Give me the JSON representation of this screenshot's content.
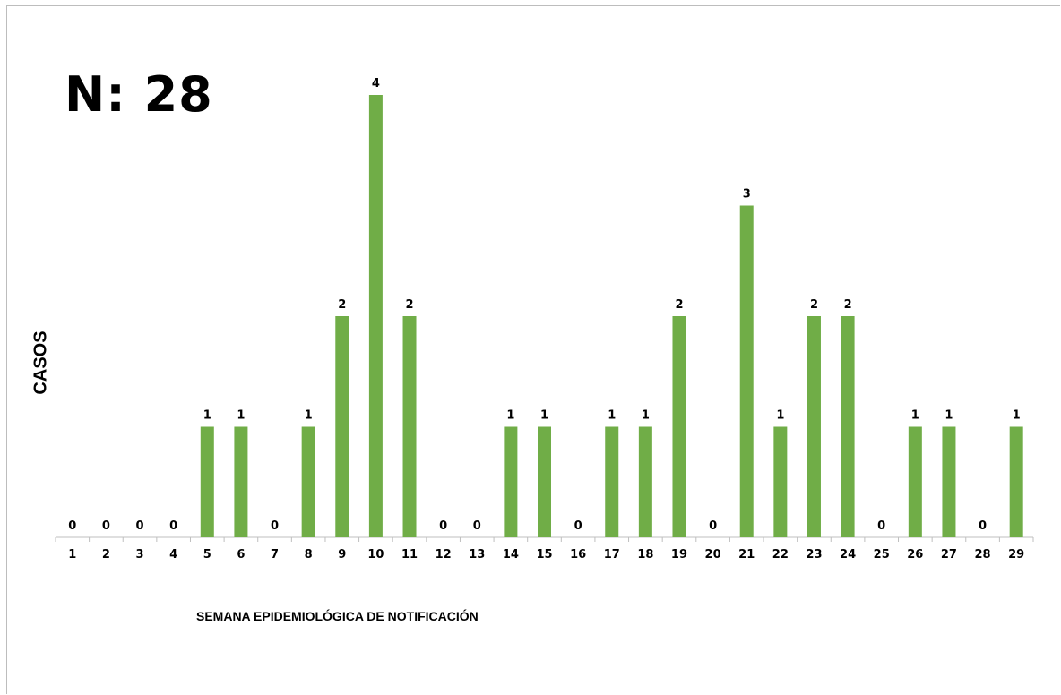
{
  "total_label": "N: 28",
  "chart_data": {
    "type": "bar",
    "title": "",
    "xlabel": "SEMANA EPIDEMIOLÓGICA DE NOTIFICACIÓN",
    "ylabel": "CASOS",
    "categories": [
      "1",
      "2",
      "3",
      "4",
      "5",
      "6",
      "7",
      "8",
      "9",
      "10",
      "11",
      "12",
      "13",
      "14",
      "15",
      "16",
      "17",
      "18",
      "19",
      "20",
      "21",
      "22",
      "23",
      "24",
      "25",
      "26",
      "27",
      "28",
      "29"
    ],
    "values": [
      0,
      0,
      0,
      0,
      1,
      1,
      0,
      1,
      2,
      4,
      2,
      0,
      0,
      1,
      1,
      0,
      1,
      1,
      2,
      0,
      3,
      1,
      2,
      2,
      0,
      1,
      1,
      0,
      1
    ],
    "ylim": [
      0,
      4
    ],
    "grid": false,
    "legend": "none",
    "bar_color": "#70ad47",
    "show_value_labels": true
  }
}
